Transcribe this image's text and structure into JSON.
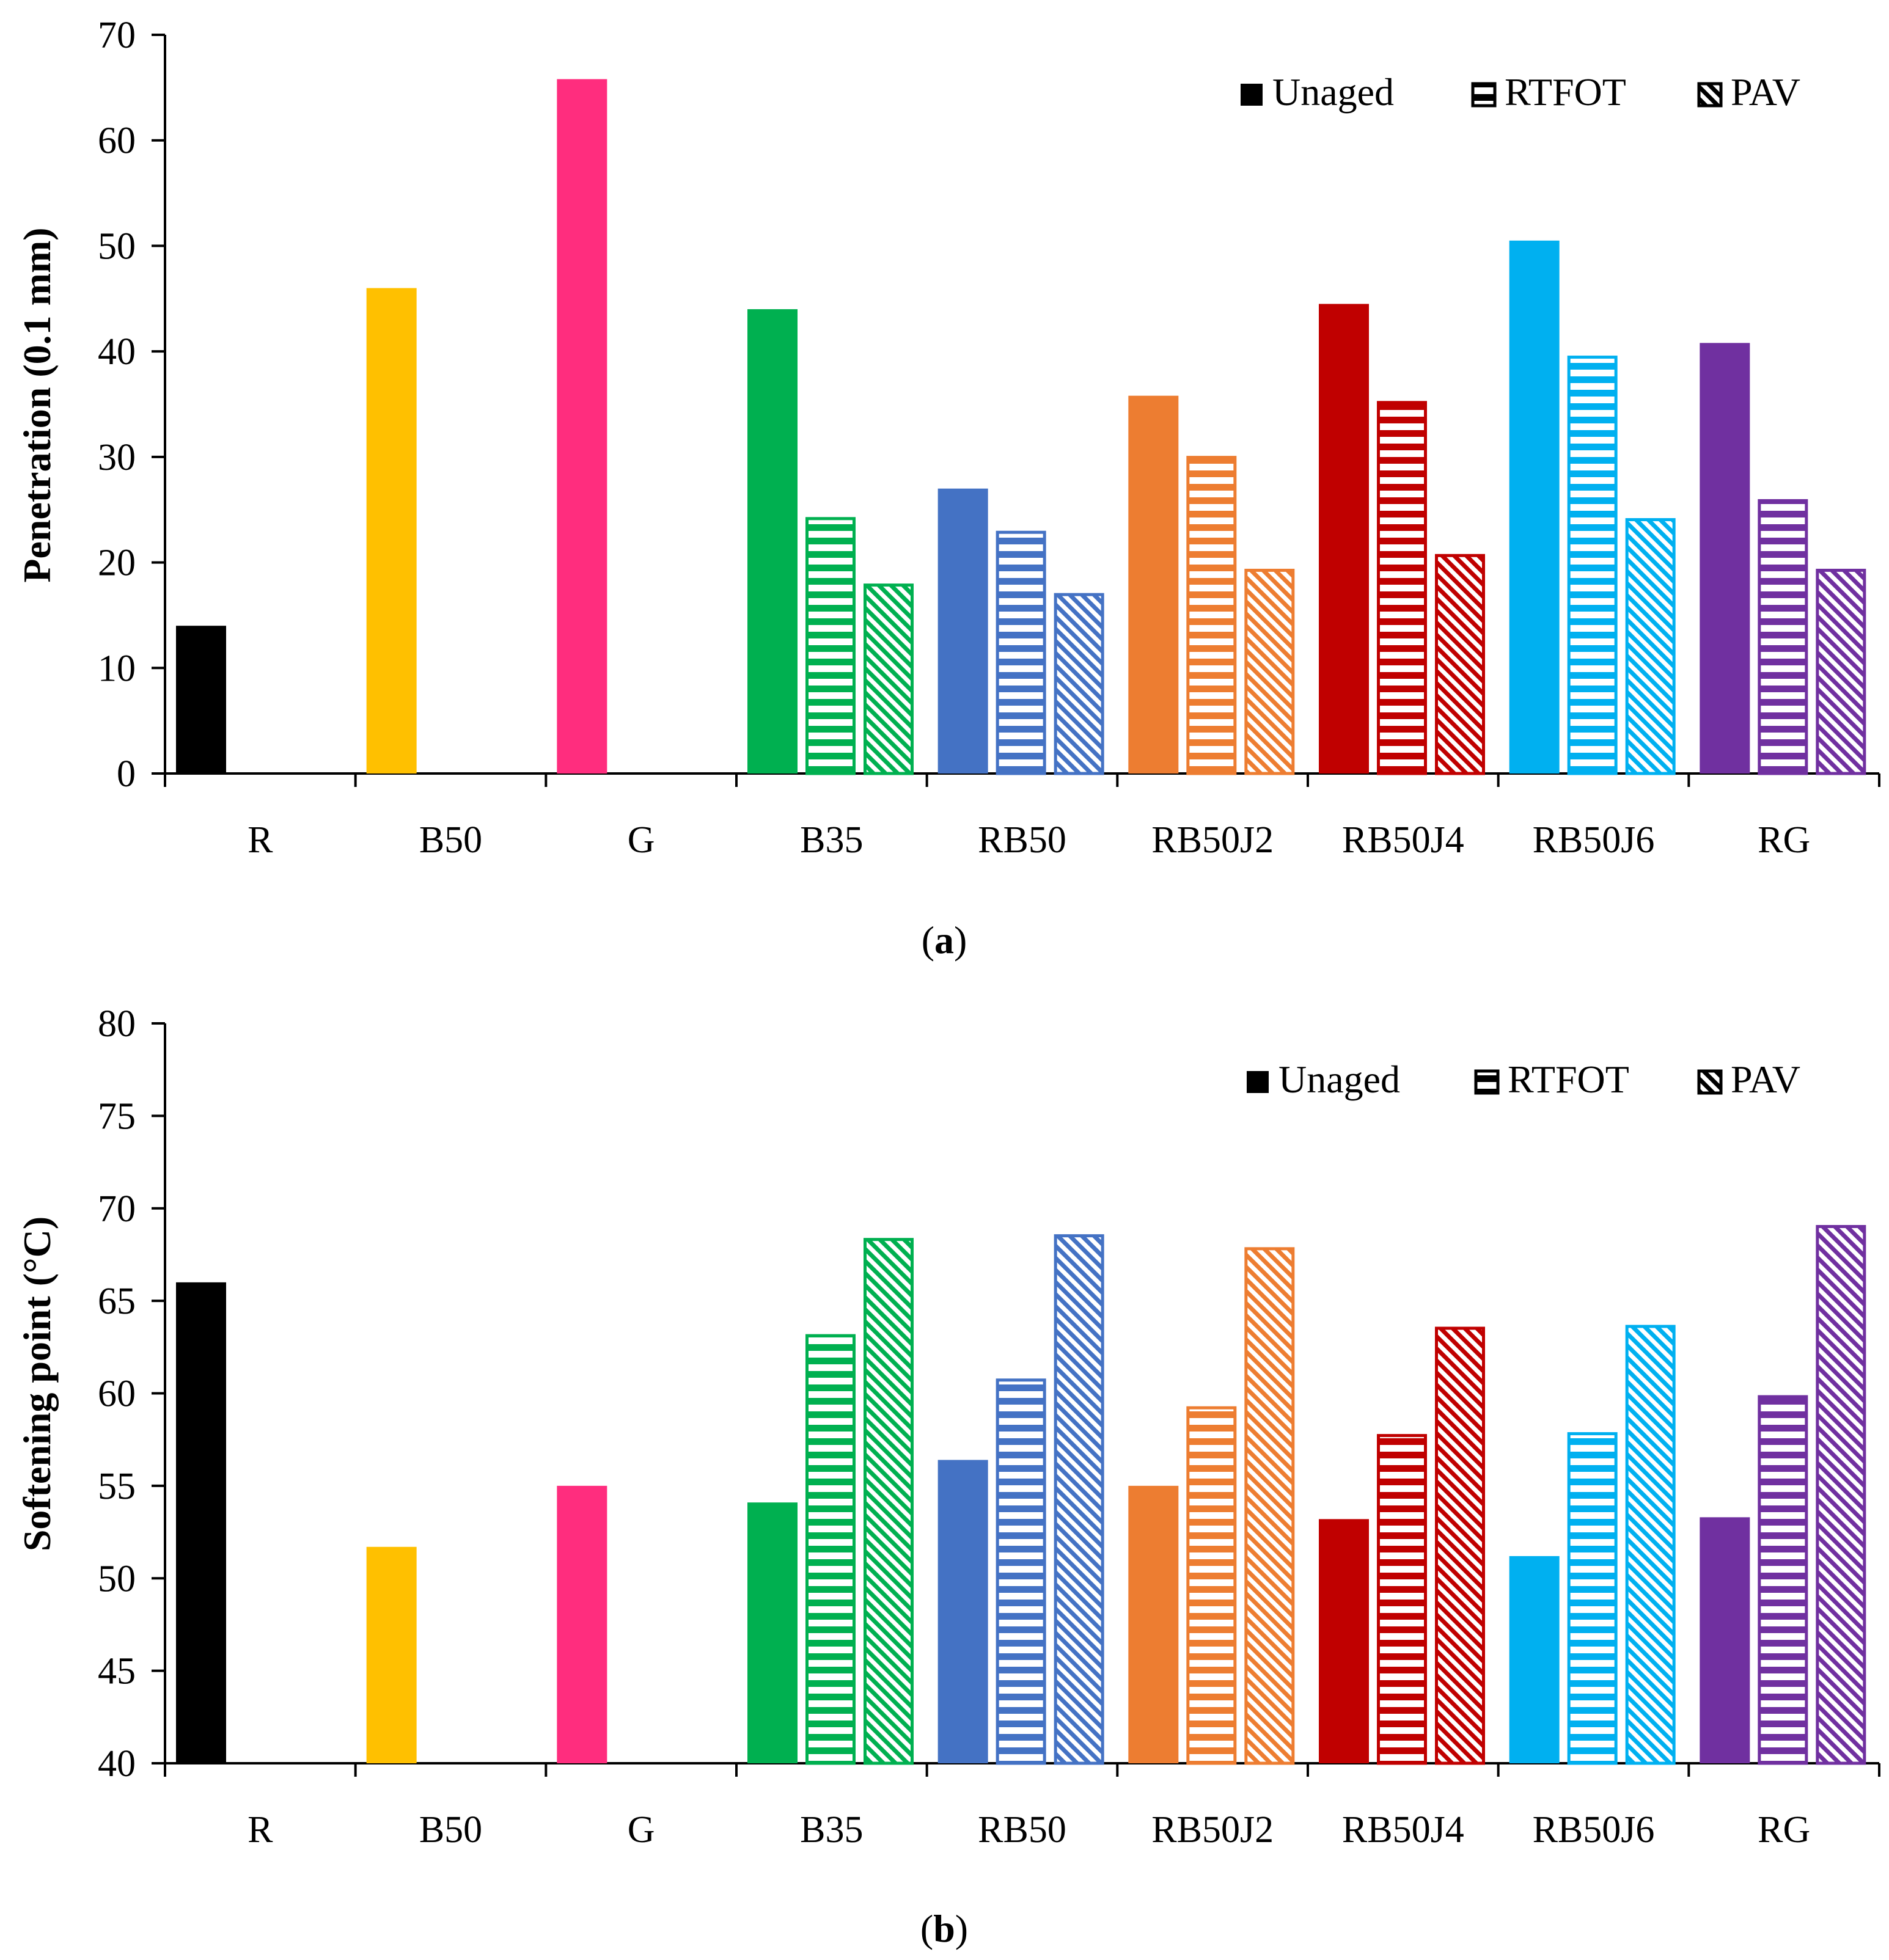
{
  "colors": {
    "R": "#000000",
    "B50": "#FFC000",
    "G": "#FF2D7E",
    "B35": "#00B050",
    "RB50": "#4472C4",
    "RB50J2": "#ED7D31",
    "RB50J4": "#C00000",
    "RB50J6": "#00B0F0",
    "RG": "#7030A0",
    "axis": "#000000"
  },
  "legend": {
    "unaged": "Unaged",
    "rtfot": "RTFOT",
    "pav": "PAV",
    "position": "top-right"
  },
  "chart_data": [
    {
      "type": "bar",
      "panel": "a",
      "caption_pre": "(",
      "caption_letter": "a",
      "caption_post": ")",
      "ylabel": "Penetration (0.1 mm)",
      "ylim": [
        0,
        70
      ],
      "yticks": [
        0,
        10,
        20,
        30,
        40,
        50,
        60,
        70
      ],
      "categories": [
        "R",
        "B50",
        "G",
        "B35",
        "RB50",
        "RB50J2",
        "RB50J4",
        "RB50J6",
        "RG"
      ],
      "series": [
        {
          "name": "Unaged",
          "values": [
            14,
            46,
            65.8,
            44,
            27,
            35.8,
            44.5,
            50.5,
            40.8
          ]
        },
        {
          "name": "RTFOT",
          "values": [
            null,
            null,
            null,
            24.3,
            23,
            30.1,
            35.3,
            39.6,
            26
          ]
        },
        {
          "name": "PAV",
          "values": [
            null,
            null,
            null,
            18,
            17.1,
            19.4,
            20.8,
            24.2,
            19.4
          ]
        }
      ]
    },
    {
      "type": "bar",
      "panel": "b",
      "caption_pre": "(",
      "caption_letter": "b",
      "caption_post": ")",
      "ylabel": "Softening point (°C)",
      "ylim": [
        40,
        80
      ],
      "yticks": [
        40,
        45,
        50,
        55,
        60,
        65,
        70,
        75,
        80
      ],
      "categories": [
        "R",
        "B50",
        "G",
        "B35",
        "RB50",
        "RB50J2",
        "RB50J4",
        "RB50J6",
        "RG"
      ],
      "series": [
        {
          "name": "Unaged",
          "values": [
            66,
            51.7,
            55,
            54.1,
            56.4,
            55,
            53.2,
            51.2,
            53.3
          ]
        },
        {
          "name": "RTFOT",
          "values": [
            null,
            null,
            null,
            63.2,
            60.8,
            59.3,
            57.8,
            57.9,
            59.9
          ]
        },
        {
          "name": "PAV",
          "values": [
            null,
            null,
            null,
            68.4,
            68.6,
            67.9,
            63.6,
            63.7,
            69.1
          ]
        }
      ]
    }
  ]
}
